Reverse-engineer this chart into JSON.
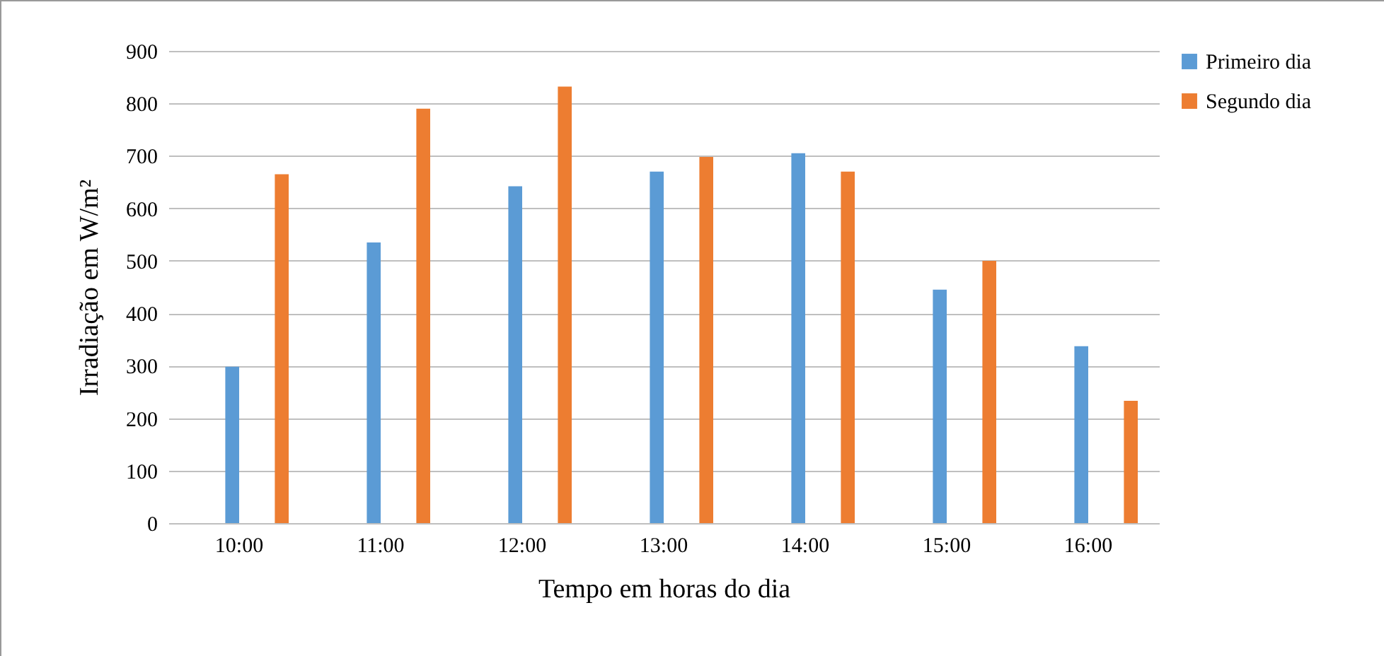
{
  "chart_data": {
    "type": "bar",
    "xlabel": "Tempo em horas do dia",
    "ylabel": "Irradiação  em W/m²",
    "categories": [
      "10:00",
      "11:00",
      "12:00",
      "13:00",
      "14:00",
      "15:00",
      "16:00"
    ],
    "series": [
      {
        "name": "Primeiro dia",
        "color": "#5b9bd5",
        "values": [
          298,
          535,
          642,
          670,
          705,
          445,
          337
        ]
      },
      {
        "name": "Segundo dia",
        "color": "#ed7d31",
        "values": [
          665,
          790,
          832,
          698,
          670,
          500,
          233
        ]
      }
    ],
    "ylim": [
      0,
      900
    ],
    "yticks": [
      0,
      100,
      200,
      300,
      400,
      500,
      600,
      700,
      800,
      900
    ],
    "grid": "y",
    "legend": "right"
  }
}
